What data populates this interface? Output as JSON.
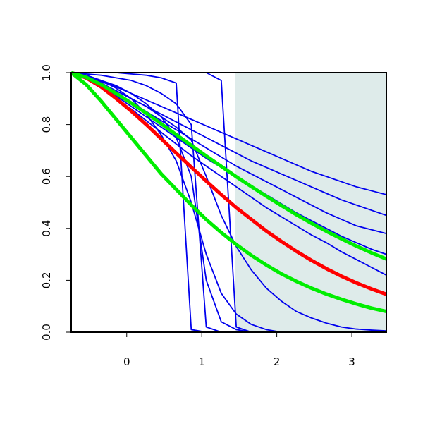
{
  "chart_data": {
    "type": "line",
    "x": [
      -0.74,
      -0.54,
      -0.34,
      -0.14,
      0.06,
      0.26,
      0.46,
      0.66,
      0.86,
      1.06,
      1.26,
      1.46,
      1.66,
      1.86,
      2.06,
      2.26,
      2.46,
      2.66,
      2.86,
      3.06,
      3.26,
      3.46
    ],
    "series": [
      {
        "color": "#0000ee",
        "values": [
          1,
          0.985,
          0.965,
          0.945,
          0.92,
          0.895,
          0.87,
          0.845,
          0.82,
          0.795,
          0.77,
          0.745,
          0.72,
          0.695,
          0.67,
          0.645,
          0.62,
          0.6,
          0.58,
          0.56,
          0.545,
          0.53
        ]
      },
      {
        "color": "#0000ee",
        "values": [
          1,
          0.98,
          0.955,
          0.93,
          0.9,
          0.87,
          0.84,
          0.81,
          0.78,
          0.75,
          0.72,
          0.69,
          0.66,
          0.635,
          0.61,
          0.585,
          0.56,
          0.535,
          0.51,
          0.49,
          0.47,
          0.45
        ]
      },
      {
        "color": "#0000ee",
        "values": [
          1,
          0.98,
          0.95,
          0.92,
          0.885,
          0.85,
          0.815,
          0.78,
          0.745,
          0.71,
          0.675,
          0.64,
          0.61,
          0.58,
          0.55,
          0.52,
          0.49,
          0.46,
          0.435,
          0.41,
          0.395,
          0.38
        ]
      },
      {
        "color": "#0000ee",
        "values": [
          1,
          0.975,
          0.945,
          0.91,
          0.87,
          0.83,
          0.79,
          0.75,
          0.71,
          0.67,
          0.635,
          0.6,
          0.565,
          0.53,
          0.495,
          0.46,
          0.43,
          0.4,
          0.37,
          0.345,
          0.32,
          0.3
        ]
      },
      {
        "color": "#0000ee",
        "values": [
          1,
          0.975,
          0.94,
          0.9,
          0.86,
          0.815,
          0.77,
          0.725,
          0.68,
          0.64,
          0.6,
          0.56,
          0.52,
          0.48,
          0.445,
          0.41,
          0.375,
          0.345,
          0.31,
          0.28,
          0.25,
          0.22
        ]
      },
      {
        "color": "#0000ee",
        "values": [
          1,
          1,
          1,
          1,
          0.995,
          0.99,
          0.98,
          0.96,
          0.01,
          0,
          0,
          0,
          0,
          0,
          0,
          0,
          0,
          0,
          0,
          0,
          0,
          0
        ]
      },
      {
        "color": "#0000ee",
        "values": [
          1,
          0.995,
          0.99,
          0.98,
          0.97,
          0.95,
          0.92,
          0.88,
          0.8,
          0.02,
          0,
          0,
          0,
          0,
          0,
          0,
          0,
          0,
          0,
          0,
          0,
          0
        ]
      },
      {
        "color": "#0000ee",
        "values": [
          1,
          1,
          1,
          1,
          1,
          1,
          1,
          1,
          1,
          1,
          0.97,
          0.02,
          0,
          0,
          0,
          0,
          0,
          0,
          0,
          0,
          0,
          0
        ]
      },
      {
        "color": "#0000ee",
        "values": [
          1,
          0.99,
          0.97,
          0.94,
          0.9,
          0.84,
          0.76,
          0.66,
          0.5,
          0.3,
          0.15,
          0.07,
          0.03,
          0.01,
          0,
          0,
          0,
          0,
          0,
          0,
          0,
          0
        ]
      },
      {
        "color": "#0000ee",
        "values": [
          1,
          0.98,
          0.96,
          0.93,
          0.9,
          0.87,
          0.83,
          0.79,
          0.74,
          0.6,
          0.45,
          0.33,
          0.24,
          0.17,
          0.12,
          0.08,
          0.055,
          0.035,
          0.02,
          0.012,
          0.008,
          0.005
        ]
      },
      {
        "color": "#0000ee",
        "values": [
          1,
          0.99,
          0.97,
          0.95,
          0.92,
          0.88,
          0.83,
          0.75,
          0.6,
          0.2,
          0.04,
          0.01,
          0,
          0,
          0,
          0,
          0,
          0,
          0,
          0,
          0,
          0
        ]
      },
      {
        "color": "#ff0000",
        "values": [
          1,
          0.98,
          0.945,
          0.9,
          0.852,
          0.8,
          0.745,
          0.69,
          0.636,
          0.582,
          0.53,
          0.48,
          0.435,
          0.39,
          0.35,
          0.312,
          0.277,
          0.245,
          0.216,
          0.19,
          0.167,
          0.146
        ]
      },
      {
        "color": "#00ee00",
        "values": [
          1,
          0.954,
          0.89,
          0.82,
          0.75,
          0.68,
          0.61,
          0.55,
          0.49,
          0.434,
          0.384,
          0.338,
          0.296,
          0.259,
          0.225,
          0.196,
          0.17,
          0.147,
          0.127,
          0.109,
          0.093,
          0.08
        ]
      },
      {
        "color": "#00ee00",
        "values": [
          1,
          0.982,
          0.954,
          0.92,
          0.883,
          0.844,
          0.803,
          0.761,
          0.72,
          0.679,
          0.639,
          0.599,
          0.561,
          0.524,
          0.488,
          0.453,
          0.42,
          0.389,
          0.36,
          0.332,
          0.306,
          0.282
        ]
      }
    ],
    "shade": {
      "x": [
        1.44,
        3.46
      ],
      "color": "#deebea"
    },
    "xlim": [
      -0.74,
      3.46
    ],
    "ylim": [
      0,
      1
    ],
    "xticks": [
      0,
      1,
      2,
      3
    ],
    "yticks": [
      {
        "value": 0,
        "label": "0.0"
      },
      0.2,
      0.4,
      0.6,
      0.8,
      {
        "value": 1,
        "label": "1.0"
      }
    ]
  }
}
